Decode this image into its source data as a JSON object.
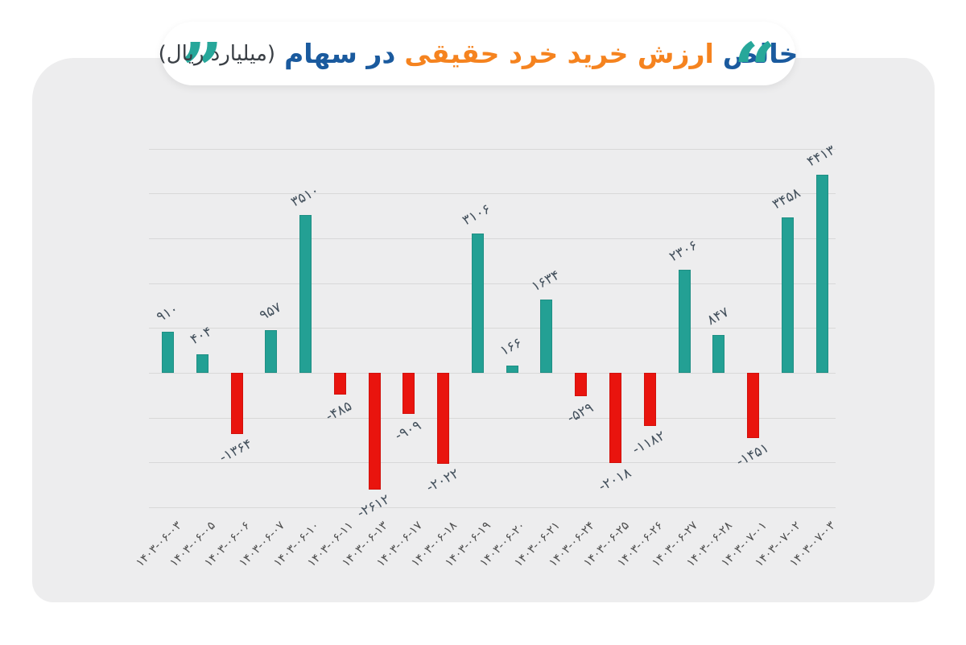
{
  "title": {
    "part1": "خالص",
    "part2": "ارزش خرید خرد حقیقی",
    "part3": "در سهام",
    "unit": "(میلیارد ریال)",
    "quote_open": "“",
    "quote_close": "”"
  },
  "colors": {
    "panel_background": "#ededee",
    "gridline": "#d8d8d8",
    "positive_bar": "#23a094",
    "negative_bar": "#e9140e",
    "title_navy": "#1a5a9e",
    "title_orange": "#f5831f",
    "quote_teal": "#27a79a",
    "value_label": "#43505c",
    "axis_label": "#4f4f4f"
  },
  "chart_data": {
    "type": "bar",
    "title": "خالص ارزش خرید خرد حقیقی در سهام",
    "unit_label": "میلیارد ریال",
    "legend": false,
    "grid": true,
    "ylim": [
      -3000,
      5000
    ],
    "grid_step": 1000,
    "positive_color": "#23a094",
    "negative_color": "#e9140e",
    "categories": [
      "۱۴۰۳-۰۶-۰۳",
      "۱۴۰۳-۰۶-۰۵",
      "۱۴۰۳-۰۶-۰۶",
      "۱۴۰۳-۰۶-۰۷",
      "۱۴۰۳-۰۶-۱۰",
      "۱۴۰۳-۰۶-۱۱",
      "۱۴۰۳-۰۶-۱۳",
      "۱۴۰۳-۰۶-۱۷",
      "۱۴۰۳-۰۶-۱۸",
      "۱۴۰۳-۰۶-۱۹",
      "۱۴۰۳-۰۶-۲۰",
      "۱۴۰۳-۰۶-۲۱",
      "۱۴۰۳-۰۶-۲۴",
      "۱۴۰۳-۰۶-۲۵",
      "۱۴۰۳-۰۶-۲۶",
      "۱۴۰۳-۰۶-۲۷",
      "۱۴۰۳-۰۶-۲۸",
      "۱۴۰۳-۰۷-۰۱",
      "۱۴۰۳-۰۷-۰۲",
      "۱۴۰۳-۰۷-۰۳"
    ],
    "values": [
      910,
      404,
      -1364,
      957,
      3510,
      -485,
      -2612,
      -909,
      -2022,
      3106,
      166,
      1634,
      -529,
      -2018,
      -1182,
      2306,
      847,
      -1451,
      3458,
      4413
    ],
    "value_labels": [
      "۹۱۰",
      "۴۰۴",
      "-۱۳۶۴",
      "۹۵۷",
      "۳۵۱۰",
      "-۴۸۵",
      "-۲۶۱۲",
      "-۹۰۹",
      "-۲۰۲۲",
      "۳۱۰۶",
      "۱۶۶",
      "۱۶۳۴",
      "-۵۲۹",
      "-۲۰۱۸",
      "-۱۱۸۲",
      "۲۳۰۶",
      "۸۴۷",
      "-۱۴۵۱",
      "۳۴۵۸",
      "۴۴۱۳"
    ]
  }
}
